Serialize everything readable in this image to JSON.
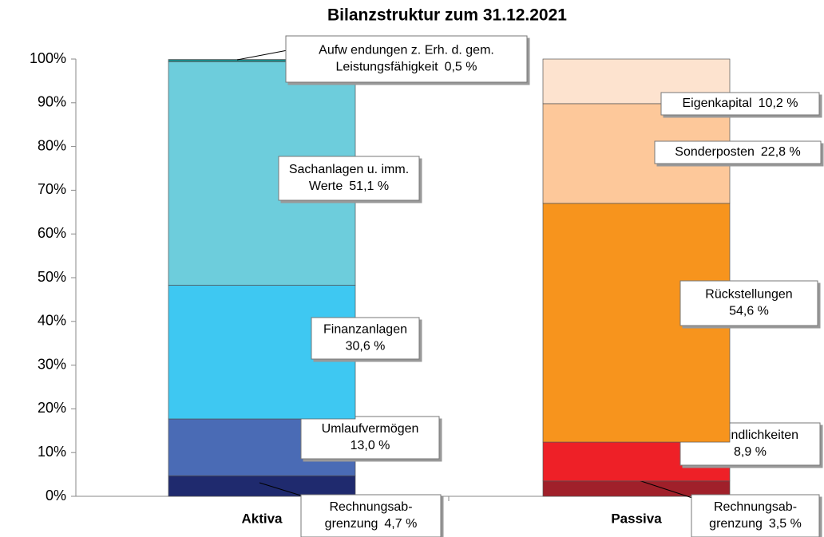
{
  "chart_data": {
    "type": "stacked_bar",
    "title": "Bilanzstruktur zum 31.12.2021",
    "ylim": [
      0,
      100
    ],
    "yticks": [
      {
        "value": 0,
        "label": "0%"
      },
      {
        "value": 10,
        "label": "10%"
      },
      {
        "value": 20,
        "label": "20%"
      },
      {
        "value": 30,
        "label": "30%"
      },
      {
        "value": 40,
        "label": "40%"
      },
      {
        "value": 50,
        "label": "50%"
      },
      {
        "value": 60,
        "label": "60%"
      },
      {
        "value": 70,
        "label": "70%"
      },
      {
        "value": 80,
        "label": "80%"
      },
      {
        "value": 90,
        "label": "90%"
      },
      {
        "value": 100,
        "label": "100%"
      }
    ],
    "stacks": [
      {
        "category": "Aktiva",
        "segments": [
          {
            "name_lines": [
              "Rechnungsab-",
              "grenzung"
            ],
            "value": 4.7,
            "value_label": "4,7 %",
            "color": "#1f2a6e"
          },
          {
            "name_lines": [
              "Umlaufvermögen"
            ],
            "value": 13.0,
            "value_label": "13,0 %",
            "color": "#4a6bb5"
          },
          {
            "name_lines": [
              "Finanzanlagen"
            ],
            "value": 30.6,
            "value_label": "30,6 %",
            "color": "#3ec8f2"
          },
          {
            "name_lines": [
              "Sachanlagen u. imm.",
              "Werte"
            ],
            "value": 51.1,
            "value_label": "51,1 %",
            "color": "#6dcddc"
          },
          {
            "name_lines": [
              "Aufw endungen z. Erh. d. gem.",
              "Leistungsfähigkeit"
            ],
            "value": 0.5,
            "value_label": "0,5 %",
            "color": "#1a8a8a"
          }
        ]
      },
      {
        "category": "Passiva",
        "segments": [
          {
            "name_lines": [
              "Rechnungsab-",
              "grenzung"
            ],
            "value": 3.5,
            "value_label": "3,5 %",
            "color": "#a0202a"
          },
          {
            "name_lines": [
              "Verbindlichkeiten"
            ],
            "value": 8.9,
            "value_label": "8,9 %",
            "color": "#ee2027"
          },
          {
            "name_lines": [
              "Rückstellungen"
            ],
            "value": 54.6,
            "value_label": "54,6 %",
            "color": "#f7941d"
          },
          {
            "name_lines": [
              "Sonderposten"
            ],
            "value": 22.8,
            "value_label": "22,8 %",
            "color": "#fdc89a"
          },
          {
            "name_lines": [
              "Eigenkapital"
            ],
            "value": 10.2,
            "value_label": "10,2 %",
            "color": "#fde3cf"
          }
        ]
      }
    ]
  }
}
